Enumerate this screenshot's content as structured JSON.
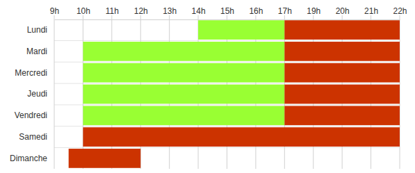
{
  "chart_data": {
    "type": "gantt",
    "orientation": "horizontal",
    "grid": true,
    "categories": [
      "Lundi",
      "Mardi",
      "Mercredi",
      "Jeudi",
      "Vendredi",
      "Samedi",
      "Dimanche"
    ],
    "series": [
      {
        "color": "#99ff33",
        "start": [
          14,
          10,
          10,
          10,
          10,
          null,
          null
        ],
        "end": [
          17,
          17,
          17,
          17,
          17,
          null,
          null
        ]
      },
      {
        "color": "#cc3300",
        "start": [
          17,
          17,
          17,
          17,
          17,
          10,
          9.5
        ],
        "end": [
          22,
          22,
          22,
          22,
          22,
          22,
          12
        ]
      }
    ],
    "xlim": [
      9,
      22
    ],
    "xticks": [
      {
        "value": 9,
        "label": "9h"
      },
      {
        "value": 10,
        "label": "10h"
      },
      {
        "value": 11,
        "label": "11h"
      },
      {
        "value": 12,
        "label": "12h"
      },
      {
        "value": 13,
        "label": "13h"
      },
      {
        "value": 14,
        "label": "14h"
      },
      {
        "value": 15,
        "label": "15h"
      },
      {
        "value": 16,
        "label": "16h"
      },
      {
        "value": 17,
        "label": "17h"
      },
      {
        "value": 19,
        "label": "19h"
      },
      {
        "value": 20,
        "label": "20h"
      },
      {
        "value": 21,
        "label": "21h"
      },
      {
        "value": 22,
        "label": "22h"
      }
    ]
  }
}
